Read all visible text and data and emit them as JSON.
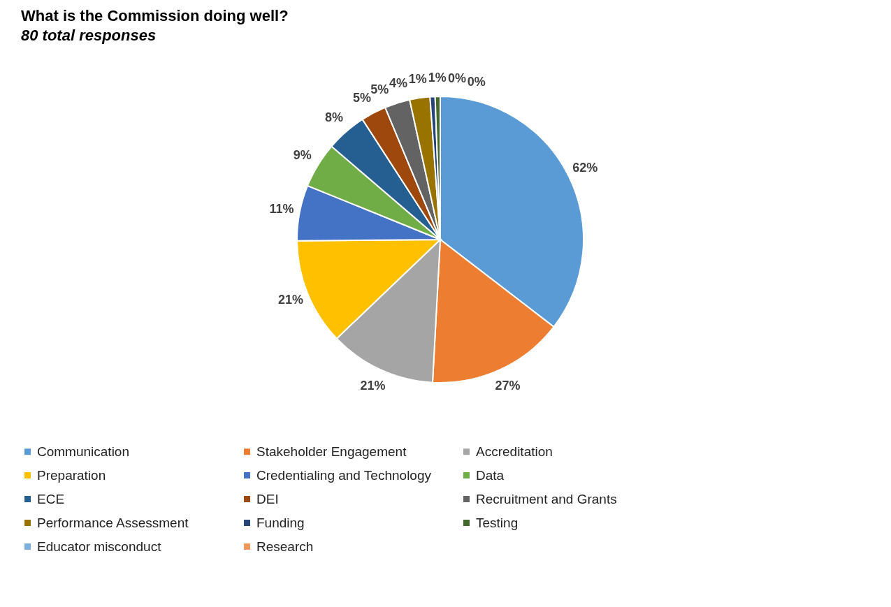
{
  "chart_data": {
    "type": "pie",
    "title": "What is the Commission doing well?",
    "subtitle": "80 total responses",
    "categories": [
      "Communication",
      "Stakeholder Engagement",
      "Accreditation",
      "Preparation",
      "Credentialing and Technology",
      "Data",
      "ECE",
      "DEI",
      "Recruitment and Grants",
      "Performance Assessment",
      "Funding",
      "Testing",
      "Educator misconduct",
      "Research"
    ],
    "values": [
      62,
      27,
      21,
      21,
      11,
      9,
      8,
      5,
      5,
      4,
      1,
      1,
      0,
      0
    ],
    "value_labels": [
      "62%",
      "27%",
      "21%",
      "21%",
      "11%",
      "9%",
      "8%",
      "5%",
      "5%",
      "4%",
      "1%",
      "1%",
      "0%",
      "0%"
    ],
    "colors": [
      "#5b9bd5",
      "#ed7d31",
      "#a5a5a5",
      "#ffc000",
      "#4472c4",
      "#70ad47",
      "#255e91",
      "#9e480e",
      "#636363",
      "#997300",
      "#264478",
      "#43682b",
      "#7cafdd",
      "#f1975a"
    ],
    "legend": "bottom"
  }
}
